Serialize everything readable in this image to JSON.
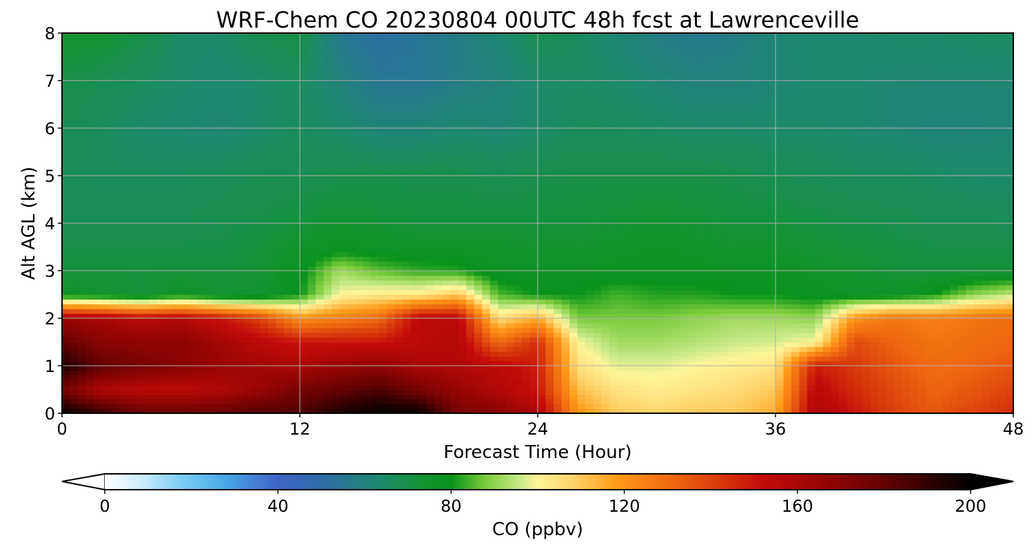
{
  "chart_data": {
    "type": "heatmap",
    "title": "WRF-Chem CO  20230804 00UTC 48h fcst at Lawrenceville",
    "xlabel": "Forecast Time (Hour)",
    "ylabel": "Alt AGL (km)",
    "xlim": [
      0,
      48
    ],
    "ylim": [
      0,
      8
    ],
    "xticks": [
      "0",
      "12",
      "24",
      "36",
      "48"
    ],
    "yticks": [
      "0",
      "1",
      "2",
      "3",
      "4",
      "5",
      "6",
      "7",
      "8"
    ],
    "grid": true,
    "x": [
      0,
      2,
      4,
      6,
      8,
      10,
      12,
      14,
      16,
      18,
      20,
      22,
      24,
      26,
      28,
      30,
      32,
      34,
      36,
      38,
      40,
      42,
      44,
      46,
      48
    ],
    "y": [
      0,
      0.5,
      1,
      1.5,
      2,
      2.5,
      3,
      3.5,
      4,
      5,
      6,
      7,
      8
    ],
    "values": [
      [
        200,
        190,
        180,
        180,
        180,
        185,
        185,
        195,
        200,
        200,
        175,
        170,
        160,
        120,
        110,
        108,
        110,
        110,
        115,
        160,
        150,
        140,
        135,
        140,
        145
      ],
      [
        175,
        158,
        155,
        155,
        158,
        165,
        175,
        180,
        185,
        175,
        165,
        158,
        150,
        112,
        104,
        102,
        104,
        106,
        110,
        155,
        145,
        138,
        132,
        135,
        140
      ],
      [
        195,
        180,
        175,
        170,
        165,
        162,
        160,
        165,
        168,
        160,
        158,
        155,
        148,
        105,
        98,
        98,
        100,
        102,
        104,
        148,
        142,
        135,
        130,
        132,
        135
      ],
      [
        180,
        170,
        168,
        168,
        162,
        155,
        150,
        150,
        150,
        155,
        158,
        130,
        145,
        100,
        92,
        92,
        94,
        96,
        97,
        100,
        138,
        132,
        128,
        130,
        132
      ],
      [
        165,
        160,
        155,
        158,
        150,
        140,
        120,
        125,
        130,
        155,
        155,
        105,
        115,
        88,
        88,
        88,
        90,
        92,
        92,
        90,
        120,
        128,
        125,
        128,
        130
      ],
      [
        75,
        74,
        72,
        76,
        73,
        73,
        80,
        100,
        103,
        103,
        110,
        85,
        80,
        80,
        84,
        82,
        82,
        80,
        80,
        78,
        76,
        76,
        80,
        90,
        95
      ],
      [
        72,
        72,
        72,
        72,
        72,
        73,
        78,
        92,
        86,
        83,
        82,
        76,
        76,
        76,
        77,
        77,
        77,
        76,
        76,
        75,
        74,
        72,
        72,
        72,
        72
      ],
      [
        70,
        70,
        70,
        70,
        70,
        72,
        75,
        77,
        76,
        75,
        75,
        75,
        74,
        74,
        75,
        76,
        75,
        74,
        74,
        73,
        72,
        71,
        70,
        70,
        70
      ],
      [
        68,
        68,
        68,
        68,
        69,
        70,
        72,
        74,
        73,
        72,
        72,
        72,
        72,
        72,
        73,
        74,
        73,
        72,
        72,
        71,
        70,
        69,
        68,
        68,
        67
      ],
      [
        67,
        66,
        66,
        66,
        67,
        68,
        68,
        69,
        69,
        69,
        69,
        68,
        69,
        70,
        70,
        70,
        70,
        69,
        68,
        67,
        66,
        66,
        65,
        64,
        64
      ],
      [
        68,
        66,
        64,
        63,
        62,
        64,
        66,
        64,
        61,
        61,
        63,
        62,
        64,
        66,
        66,
        65,
        64,
        64,
        64,
        64,
        63,
        62,
        61,
        61,
        62
      ],
      [
        70,
        68,
        66,
        64,
        63,
        64,
        66,
        60,
        55,
        55,
        58,
        60,
        64,
        65,
        64,
        62,
        60,
        60,
        62,
        63,
        63,
        62,
        62,
        62,
        62
      ],
      [
        74,
        74,
        70,
        64,
        64,
        68,
        70,
        56,
        52,
        55,
        58,
        62,
        68,
        66,
        62,
        58,
        56,
        58,
        62,
        63,
        63,
        64,
        64,
        65,
        66
      ]
    ],
    "colorbar": {
      "label": "CO  (ppbv)",
      "min": 0,
      "max": 200,
      "ticks": [
        "0",
        "40",
        "80",
        "120",
        "160",
        "200"
      ],
      "extend": "both",
      "stops": [
        [
          0,
          "#ffffff"
        ],
        [
          8,
          "#cfeefc"
        ],
        [
          18,
          "#79ccf4"
        ],
        [
          28,
          "#4aa6e6"
        ],
        [
          40,
          "#3f63c8"
        ],
        [
          52,
          "#2a6fa0"
        ],
        [
          64,
          "#1e8a6a"
        ],
        [
          74,
          "#12932f"
        ],
        [
          80,
          "#08931a"
        ],
        [
          88,
          "#7ccc3c"
        ],
        [
          96,
          "#c8e98a"
        ],
        [
          100,
          "#fff59a"
        ],
        [
          108,
          "#ffd36a"
        ],
        [
          118,
          "#ff9b18"
        ],
        [
          132,
          "#ee6410"
        ],
        [
          145,
          "#d12c0a"
        ],
        [
          152,
          "#c40b0b"
        ],
        [
          165,
          "#9a0505"
        ],
        [
          180,
          "#650202"
        ],
        [
          200,
          "#000000"
        ]
      ]
    }
  }
}
